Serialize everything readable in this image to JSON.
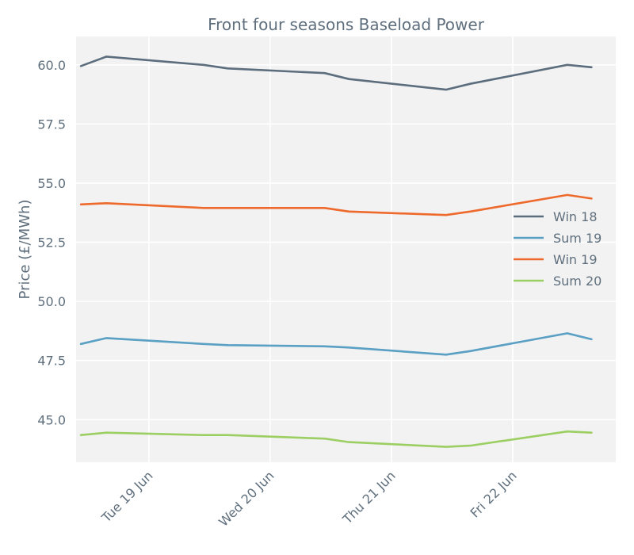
{
  "chart_data": {
    "type": "line",
    "title": "Front four seasons Baseload Power",
    "xlabel": "",
    "ylabel": "Price (£/MWh)",
    "ylim": [
      43.2,
      61.2
    ],
    "xlim": [
      -0.6,
      3.85
    ],
    "yticks": [
      45.0,
      47.5,
      50.0,
      52.5,
      55.0,
      57.5,
      60.0
    ],
    "ytick_labels": [
      "45.0",
      "47.5",
      "50.0",
      "52.5",
      "55.0",
      "57.5",
      "60.0"
    ],
    "xticks": [
      0,
      1,
      2,
      3
    ],
    "xtick_labels": [
      "Tue 19 Jun",
      "Wed 20 Jun",
      "Thu 21 Jun",
      "Fri 22 Jun"
    ],
    "grid": true,
    "legend_position": "center-right",
    "x": [
      -0.56,
      -0.35,
      0.45,
      0.65,
      1.45,
      1.65,
      2.45,
      2.65,
      3.45,
      3.65
    ],
    "series": [
      {
        "name": "Win 18",
        "color": "#5c6e7e",
        "values": [
          59.95,
          60.35,
          60.0,
          59.85,
          59.65,
          59.4,
          58.95,
          59.2,
          60.0,
          59.9
        ]
      },
      {
        "name": "Sum 19",
        "color": "#5a9fc4",
        "values": [
          48.2,
          48.45,
          48.2,
          48.15,
          48.1,
          48.05,
          47.75,
          47.9,
          48.65,
          48.4
        ]
      },
      {
        "name": "Win 19",
        "color": "#ee6a2c",
        "values": [
          54.1,
          54.15,
          53.95,
          53.95,
          53.95,
          53.8,
          53.65,
          53.8,
          54.5,
          54.35
        ]
      },
      {
        "name": "Sum 20",
        "color": "#9ccf63",
        "values": [
          44.35,
          44.45,
          44.35,
          44.35,
          44.2,
          44.05,
          43.85,
          43.9,
          44.5,
          44.45
        ]
      }
    ]
  }
}
